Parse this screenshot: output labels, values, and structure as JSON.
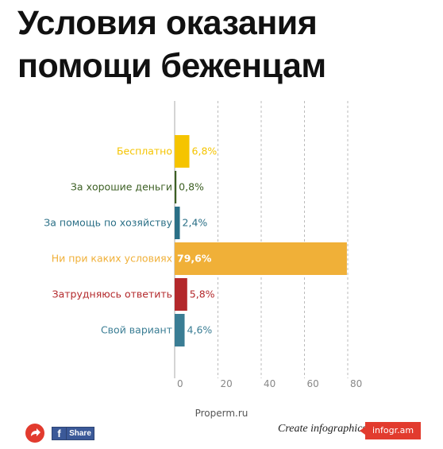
{
  "title_lines": [
    "Условия оказания",
    "помощи беженцам"
  ],
  "chart_data": {
    "type": "bar",
    "orientation": "horizontal",
    "categories": [
      "Бесплатно",
      "За хорошие деньги",
      "За помощь по хозяйству",
      "Ни при каких условиях",
      "Затрудняюсь ответить",
      "Свой вариант"
    ],
    "values": [
      6.8,
      0.8,
      2.4,
      79.6,
      5.8,
      4.6
    ],
    "value_labels": [
      "6,8%",
      "0,8%",
      "2,4%",
      "79,6%",
      "5,8%",
      "4,6%"
    ],
    "colors": [
      "#f5c400",
      "#3c5f23",
      "#2a6f86",
      "#f0b038",
      "#b3282b",
      "#3a7d94"
    ],
    "xlim": [
      0,
      80
    ],
    "x_ticks": [
      0,
      20,
      40,
      60,
      80
    ],
    "x_tick_labels": [
      "0",
      "20",
      "40",
      "60",
      "80"
    ],
    "grid": true
  },
  "source": "Properm.ru",
  "footer": {
    "share_label": "Share",
    "facebook_glyph": "f",
    "create_text": "Create infographics",
    "brand_badge": "infogr.am"
  }
}
